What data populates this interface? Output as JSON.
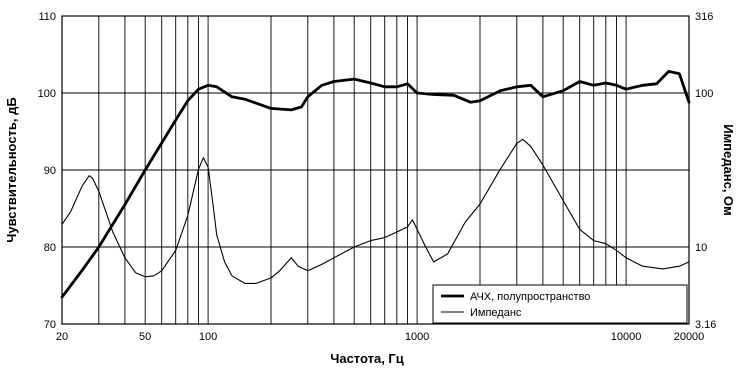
{
  "chart_data": {
    "type": "line",
    "title": "",
    "xlabel": "Частота, Гц",
    "ylabel": "Чувствительность, дБ",
    "y2label": "Импеданс, Ом",
    "xscale": "log",
    "xlim": [
      20,
      20000
    ],
    "ylim": [
      70,
      110
    ],
    "y2lim": [
      3.16,
      316
    ],
    "y2scale": "log",
    "grid": true,
    "legend_position": "bottom-right",
    "x_tick_labels": [
      {
        "value": 20,
        "label": "20"
      },
      {
        "value": 50,
        "label": "50"
      },
      {
        "value": 100,
        "label": "100"
      },
      {
        "value": 1000,
        "label": "1000"
      },
      {
        "value": 10000,
        "label": "10000"
      },
      {
        "value": 20000,
        "label": "20000"
      }
    ],
    "y_tick_labels": [
      {
        "value": 70,
        "label": "70"
      },
      {
        "value": 80,
        "label": "80"
      },
      {
        "value": 90,
        "label": "90"
      },
      {
        "value": 100,
        "label": "100"
      },
      {
        "value": 110,
        "label": "110"
      }
    ],
    "y2_tick_labels": [
      {
        "value": 3.16,
        "label": "3.16"
      },
      {
        "value": 10,
        "label": "10"
      },
      {
        "value": 100,
        "label": "100"
      },
      {
        "value": 316,
        "label": "316"
      }
    ],
    "series": [
      {
        "name": "АЧХ, полупространство",
        "axis": "left",
        "color": "#000000",
        "style": "thick",
        "x": [
          20,
          25,
          30,
          40,
          50,
          60,
          70,
          80,
          90,
          100,
          110,
          130,
          150,
          200,
          250,
          280,
          300,
          350,
          400,
          500,
          600,
          700,
          800,
          900,
          1000,
          1200,
          1500,
          1800,
          2000,
          2500,
          3000,
          3500,
          4000,
          5000,
          6000,
          7000,
          8000,
          9000,
          10000,
          12000,
          14000,
          16000,
          18000,
          20000
        ],
        "values": [
          73.5,
          77,
          80,
          85.5,
          90,
          93.5,
          96.5,
          99,
          100.5,
          101,
          100.8,
          99.5,
          99.2,
          98,
          97.8,
          98.2,
          99.5,
          101,
          101.5,
          101.8,
          101.3,
          100.8,
          100.8,
          101.2,
          100,
          99.8,
          99.7,
          98.8,
          99,
          100.3,
          100.8,
          101,
          99.5,
          100.3,
          101.5,
          101,
          101.3,
          101,
          100.5,
          101,
          101.2,
          102.8,
          102.5,
          98.8
        ]
      },
      {
        "name": "Импеданс",
        "axis": "right",
        "color": "#000000",
        "style": "thin",
        "x": [
          20,
          22,
          25,
          27,
          28,
          30,
          35,
          40,
          45,
          50,
          55,
          60,
          70,
          80,
          90,
          95,
          100,
          105,
          110,
          120,
          130,
          150,
          170,
          200,
          220,
          250,
          270,
          300,
          350,
          400,
          500,
          600,
          700,
          800,
          900,
          950,
          1000,
          1100,
          1200,
          1400,
          1700,
          2000,
          2500,
          3000,
          3200,
          3500,
          4000,
          5000,
          6000,
          7000,
          8000,
          9000,
          10000,
          12000,
          15000,
          18000,
          20000
        ],
        "values": [
          14,
          17,
          25,
          29,
          28,
          23,
          12.5,
          8.5,
          6.8,
          6.4,
          6.5,
          7,
          9.5,
          16,
          32,
          38,
          33,
          20,
          12,
          8,
          6.5,
          5.8,
          5.8,
          6.3,
          7,
          8.5,
          7.5,
          7,
          7.7,
          8.5,
          10,
          11,
          11.5,
          12.5,
          13.5,
          15,
          13,
          10,
          8,
          9,
          14.5,
          19,
          32,
          47,
          50,
          45,
          34,
          20,
          13,
          11,
          10.5,
          9.5,
          8.5,
          7.5,
          7.2,
          7.5,
          8
        ]
      }
    ]
  }
}
